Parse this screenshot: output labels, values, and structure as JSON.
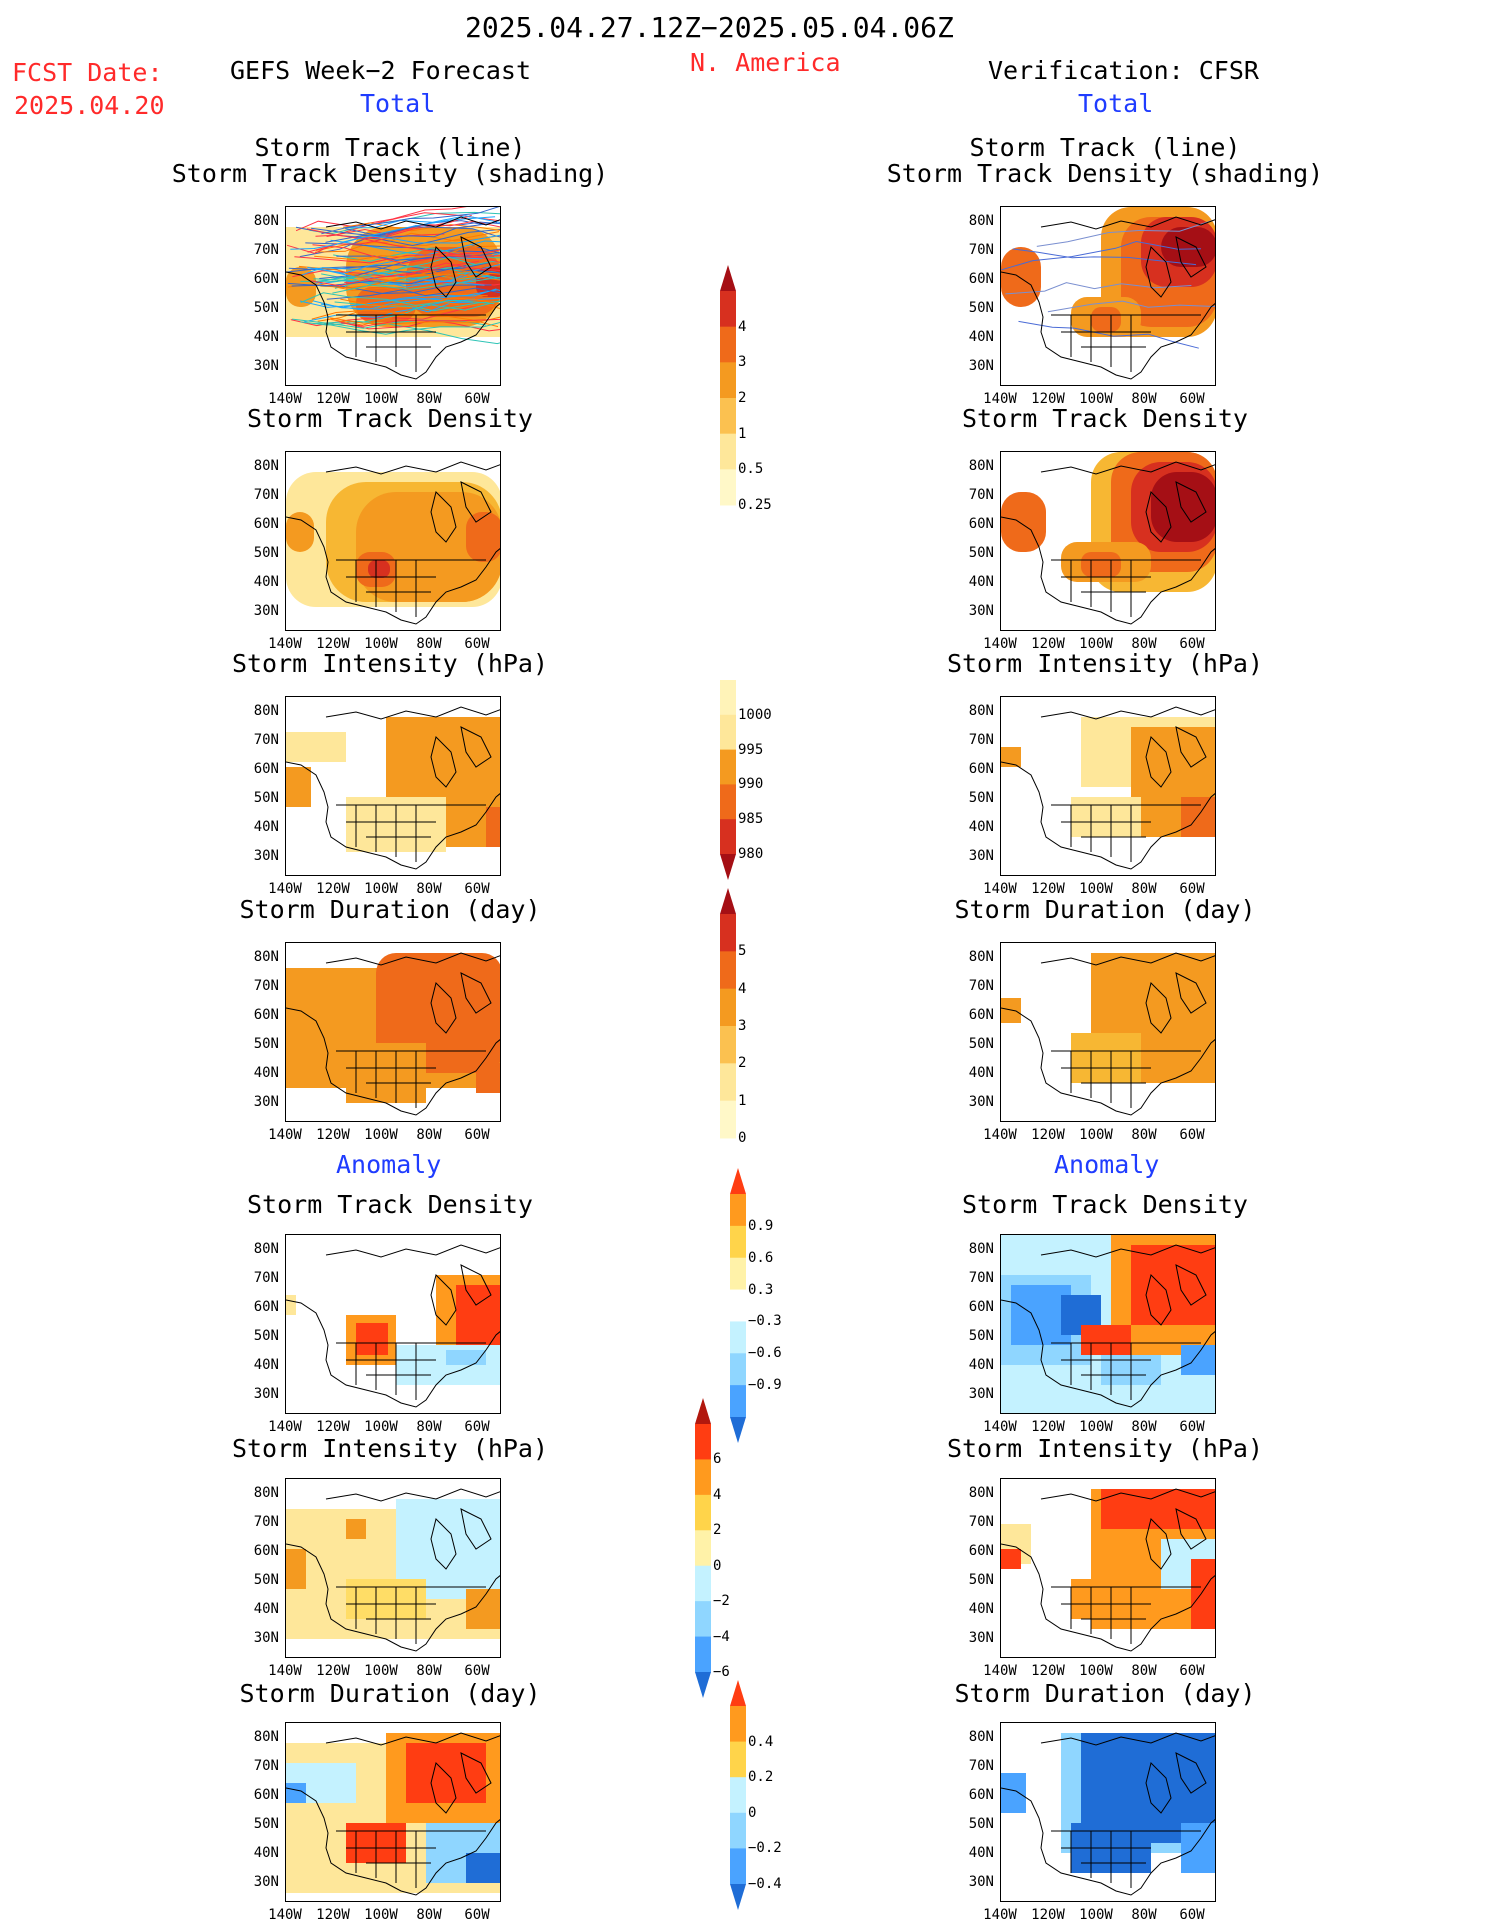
{
  "header": {
    "period": "2025.04.27.12Z−2025.05.04.06Z",
    "region": "N. America",
    "fcst_label": "FCST Date:",
    "fcst_date": "2025.04.20",
    "left_title": "GEFS Week−2 Forecast",
    "right_title": "Verification: CFSR",
    "total_left": "Total",
    "total_right": "Total",
    "anomaly_left": "Anomaly",
    "anomaly_right": "Anomaly"
  },
  "panel_titles": {
    "track_line": "Storm Track (line)",
    "track_density_shading": "Storm Track Density (shading)",
    "density": "Storm Track Density",
    "intensity": "Storm Intensity (hPa)",
    "duration": "Storm Duration (day)"
  },
  "axes": {
    "lat_ticks": [
      "80N",
      "70N",
      "60N",
      "50N",
      "40N",
      "30N"
    ],
    "lon_ticks": [
      "140W",
      "120W",
      "100W",
      "80W",
      "60W"
    ]
  },
  "colorbars": {
    "density_total": {
      "labels": [
        "4",
        "3",
        "2",
        "1",
        "0.5",
        "0.25"
      ],
      "colors": [
        "#a50f15",
        "#d7301f",
        "#ef6a1a",
        "#f49a20",
        "#fbc150",
        "#fee79a",
        "#fff8c8"
      ]
    },
    "intensity_total": {
      "labels": [
        "1000",
        "995",
        "990",
        "985",
        "980"
      ],
      "colors": [
        "#fff3b8",
        "#fee79a",
        "#f49a20",
        "#ef6a1a",
        "#d7301f",
        "#a50f15"
      ]
    },
    "duration_total": {
      "labels": [
        "5",
        "4",
        "3",
        "2",
        "1",
        "0"
      ],
      "colors": [
        "#a50f15",
        "#d7301f",
        "#ef6a1a",
        "#f49a20",
        "#fbc150",
        "#fee79a",
        "#fff8c8"
      ]
    },
    "density_anom": {
      "labels": [
        "0.9",
        "0.6",
        "0.3",
        "−0.3",
        "−0.6",
        "−0.9"
      ],
      "colors": [
        "#ff3d12",
        "#ff9a1e",
        "#ffd44a",
        "#fff2a8",
        "#ffffff",
        "#c4f2ff",
        "#8fd6ff",
        "#4aa3ff",
        "#1f6dd6"
      ]
    },
    "intensity_anom": {
      "labels": [
        "6",
        "4",
        "2",
        "0",
        "−2",
        "−4",
        "−6"
      ],
      "colors": [
        "#b2180e",
        "#ff3d12",
        "#ff9a1e",
        "#ffd44a",
        "#fff2a8",
        "#c4f2ff",
        "#8fd6ff",
        "#4aa3ff",
        "#1f6dd6"
      ]
    },
    "duration_anom": {
      "labels": [
        "0.4",
        "0.2",
        "0",
        "−0.2",
        "−0.4"
      ],
      "colors": [
        "#ff3d12",
        "#ff9a1e",
        "#ffd44a",
        "#c4f2ff",
        "#8fd6ff",
        "#4aa3ff",
        "#1f6dd6"
      ]
    }
  }
}
